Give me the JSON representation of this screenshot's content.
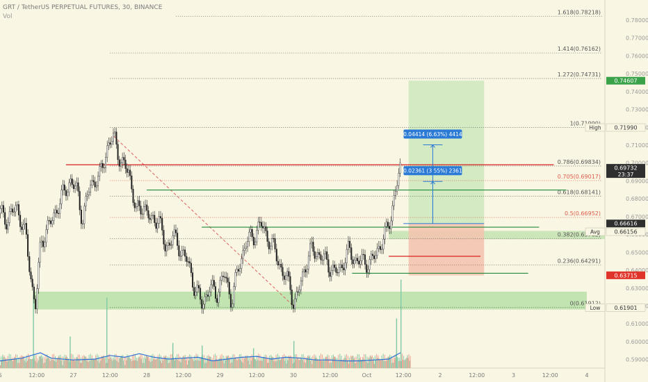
{
  "header": {
    "symbol_line": "GRT / TetherUS PERPETUAL FUTURES, 30, BINANCE",
    "vol_label": "Vol"
  },
  "chart_data": {
    "type": "candlestick",
    "ylim": [
      0.5852,
      0.7893
    ],
    "y_ticks": [
      "0.78000",
      "0.77000",
      "0.76000",
      "0.75000",
      "0.74000",
      "0.73000",
      "0.72000",
      "0.71000",
      "0.70000",
      "0.69000",
      "0.68000",
      "0.67000",
      "0.66000",
      "0.65000",
      "0.64000",
      "0.63000",
      "0.62000",
      "0.61000",
      "0.60000",
      "0.59000"
    ],
    "x_ticks": [
      {
        "label": "6",
        "pos": 0.0
      },
      {
        "label": "12:00",
        "pos": 0.5
      },
      {
        "label": "27",
        "pos": 1.0
      },
      {
        "label": "12:00",
        "pos": 1.5
      },
      {
        "label": "28",
        "pos": 2.0
      },
      {
        "label": "12:00",
        "pos": 2.5
      },
      {
        "label": "29",
        "pos": 3.0
      },
      {
        "label": "12:00",
        "pos": 3.5
      },
      {
        "label": "30",
        "pos": 4.0
      },
      {
        "label": "12:00",
        "pos": 4.5
      },
      {
        "label": "Oct",
        "pos": 5.0
      },
      {
        "label": "12:00",
        "pos": 5.5
      },
      {
        "label": "2",
        "pos": 6.0
      },
      {
        "label": "12:00",
        "pos": 6.5
      },
      {
        "label": "3",
        "pos": 7.0
      },
      {
        "label": "12:00",
        "pos": 7.5
      },
      {
        "label": "4",
        "pos": 8.0
      }
    ],
    "price_path": [
      [
        0.0,
        0.672
      ],
      [
        0.1,
        0.668
      ],
      [
        0.22,
        0.676
      ],
      [
        0.35,
        0.658
      ],
      [
        0.45,
        0.625
      ],
      [
        0.48,
        0.62
      ],
      [
        0.55,
        0.656
      ],
      [
        0.7,
        0.668
      ],
      [
        0.85,
        0.682
      ],
      [
        0.95,
        0.69
      ],
      [
        1.05,
        0.684
      ],
      [
        1.12,
        0.668
      ],
      [
        1.22,
        0.688
      ],
      [
        1.35,
        0.692
      ],
      [
        1.45,
        0.708
      ],
      [
        1.55,
        0.715
      ],
      [
        1.65,
        0.699
      ],
      [
        1.75,
        0.696
      ],
      [
        1.85,
        0.672
      ],
      [
        1.95,
        0.677
      ],
      [
        2.05,
        0.667
      ],
      [
        2.15,
        0.67
      ],
      [
        2.25,
        0.652
      ],
      [
        2.35,
        0.659
      ],
      [
        2.45,
        0.652
      ],
      [
        2.55,
        0.645
      ],
      [
        2.65,
        0.63
      ],
      [
        2.75,
        0.621
      ],
      [
        2.85,
        0.63
      ],
      [
        2.95,
        0.627
      ],
      [
        3.05,
        0.638
      ],
      [
        3.15,
        0.623
      ],
      [
        3.25,
        0.642
      ],
      [
        3.35,
        0.656
      ],
      [
        3.45,
        0.659
      ],
      [
        3.55,
        0.666
      ],
      [
        3.65,
        0.658
      ],
      [
        3.75,
        0.65
      ],
      [
        3.85,
        0.638
      ],
      [
        3.95,
        0.632
      ],
      [
        4.0,
        0.62
      ],
      [
        4.05,
        0.626
      ],
      [
        4.15,
        0.642
      ],
      [
        4.25,
        0.652
      ],
      [
        4.35,
        0.648
      ],
      [
        4.45,
        0.645
      ],
      [
        4.55,
        0.638
      ],
      [
        4.65,
        0.642
      ],
      [
        4.75,
        0.651
      ],
      [
        4.85,
        0.645
      ],
      [
        4.95,
        0.645
      ],
      [
        5.05,
        0.644
      ],
      [
        5.15,
        0.652
      ],
      [
        5.25,
        0.66
      ],
      [
        5.32,
        0.67
      ],
      [
        5.38,
        0.683
      ],
      [
        5.43,
        0.693
      ],
      [
        5.46,
        0.6973
      ]
    ],
    "volume": [
      {
        "x": 0.45,
        "h": 0.8
      },
      {
        "x": 0.95,
        "h": 0.35
      },
      {
        "x": 1.45,
        "h": 0.78
      },
      {
        "x": 2.35,
        "h": 0.28
      },
      {
        "x": 2.75,
        "h": 0.25
      },
      {
        "x": 3.45,
        "h": 0.22
      },
      {
        "x": 4.0,
        "h": 0.3
      },
      {
        "x": 5.46,
        "h": 0.98
      },
      {
        "x": 5.4,
        "h": 0.55
      }
    ],
    "volume_avg": [
      [
        0.0,
        0.08
      ],
      [
        0.3,
        0.11
      ],
      [
        0.55,
        0.17
      ],
      [
        0.7,
        0.11
      ],
      [
        1.0,
        0.09
      ],
      [
        1.3,
        0.1
      ],
      [
        1.5,
        0.14
      ],
      [
        1.7,
        0.12
      ],
      [
        1.9,
        0.16
      ],
      [
        2.1,
        0.12
      ],
      [
        2.3,
        0.1
      ],
      [
        2.5,
        0.11
      ],
      [
        2.7,
        0.12
      ],
      [
        2.9,
        0.08
      ],
      [
        3.1,
        0.1
      ],
      [
        3.3,
        0.12
      ],
      [
        3.5,
        0.13
      ],
      [
        3.7,
        0.1
      ],
      [
        3.9,
        0.12
      ],
      [
        4.1,
        0.11
      ],
      [
        4.3,
        0.09
      ],
      [
        4.5,
        0.09
      ],
      [
        4.7,
        0.08
      ],
      [
        4.9,
        0.08
      ],
      [
        5.1,
        0.09
      ],
      [
        5.3,
        0.1
      ],
      [
        5.46,
        0.17
      ]
    ],
    "fibonacci": [
      {
        "label": "1.618(0.78218)",
        "value": 0.78218,
        "x0": 2.4,
        "color": "#555555"
      },
      {
        "label": "1.414(0.76162)",
        "value": 0.76162,
        "x0": 1.5,
        "color": "#555555"
      },
      {
        "label": "1.272(0.74731)",
        "value": 0.74731,
        "x0": 1.5,
        "color": "#555555"
      },
      {
        "label": "1(0.71990)",
        "value": 0.7199,
        "x0": 1.5,
        "color": "#555555"
      },
      {
        "label": "0.786(0.69834)",
        "value": 0.69834,
        "x0": 1.5,
        "color": "#555555"
      },
      {
        "label": "0.705(0.69017)",
        "value": 0.69017,
        "x0": 1.5,
        "color": "#e05a4a"
      },
      {
        "label": "0.618(0.68141)",
        "value": 0.68141,
        "x0": 1.5,
        "color": "#555555"
      },
      {
        "label": "0.5(0.66952)",
        "value": 0.66952,
        "x0": 1.5,
        "color": "#e05a4a"
      },
      {
        "label": "0.382(0.65762)",
        "value": 0.65762,
        "x0": 1.5,
        "color": "#555555"
      },
      {
        "label": "0.236(0.64291)",
        "value": 0.64291,
        "x0": 1.5,
        "color": "#555555"
      },
      {
        "label": "0(0.61912)",
        "value": 0.61912,
        "x0": 1.5,
        "color": "#555555"
      }
    ],
    "horizontal_lines": [
      {
        "value": 0.699,
        "x0": 0.9,
        "x1": 7.55,
        "color": "#d62020"
      },
      {
        "value": 0.6849,
        "x0": 2.0,
        "x1": 7.72,
        "color": "#1f8a3a"
      },
      {
        "value": 0.6641,
        "x0": 2.75,
        "x1": 7.35,
        "color": "#1f8a3a"
      },
      {
        "value": 0.6478,
        "x0": 5.3,
        "x1": 6.55,
        "color": "#d62020"
      },
      {
        "value": 0.6383,
        "x0": 4.8,
        "x1": 7.2,
        "color": "#1f8a3a"
      }
    ],
    "support_zone": {
      "x0": 0.45,
      "x1": 8.0,
      "y0": 0.618,
      "y1": 0.628
    },
    "right_zone": {
      "x0": 5.3,
      "x1": 8.0,
      "y0": 0.6574,
      "y1": 0.662
    },
    "long_position": {
      "x0": 5.57,
      "x1": 6.6,
      "entry": 0.6661,
      "target": 0.7461,
      "stop": 0.6371
    },
    "trend_line": {
      "x0": 1.55,
      "y0": 0.715,
      "x1": 4.0,
      "y1": 0.62
    },
    "measures": [
      {
        "label": "0.02361 (3.55%) 2361",
        "x": 5.9,
        "y0": 0.6661,
        "y1": 0.6897
      },
      {
        "label": "0.04414 (6.63%) 4414",
        "x": 5.9,
        "y0": 0.6661,
        "y1": 0.7102
      }
    ],
    "price_labels": [
      {
        "text": "0.74607",
        "value": 0.74607,
        "bg": "#3aa34a",
        "fg": "#ffffff"
      },
      {
        "text": "0.71990",
        "value": 0.7199,
        "bg": "#f9f6e3",
        "fg": "#333333",
        "side": "High"
      },
      {
        "text": "0.69732",
        "value": 0.69732,
        "bg": "#2f2f2f",
        "fg": "#ffffff",
        "sub": "23:37"
      },
      {
        "text": "0.66616",
        "value": 0.66616,
        "bg": "#2f2f2f",
        "fg": "#ffffff"
      },
      {
        "text": "0.66156",
        "value": 0.66156,
        "bg": "#f9f6e3",
        "fg": "#333333",
        "side": "Avg"
      },
      {
        "text": "0.63715",
        "value": 0.63715,
        "bg": "#e0332a",
        "fg": "#ffffff"
      },
      {
        "text": "0.61901",
        "value": 0.61901,
        "bg": "#f9f6e3",
        "fg": "#333333",
        "side": "Low"
      }
    ]
  }
}
